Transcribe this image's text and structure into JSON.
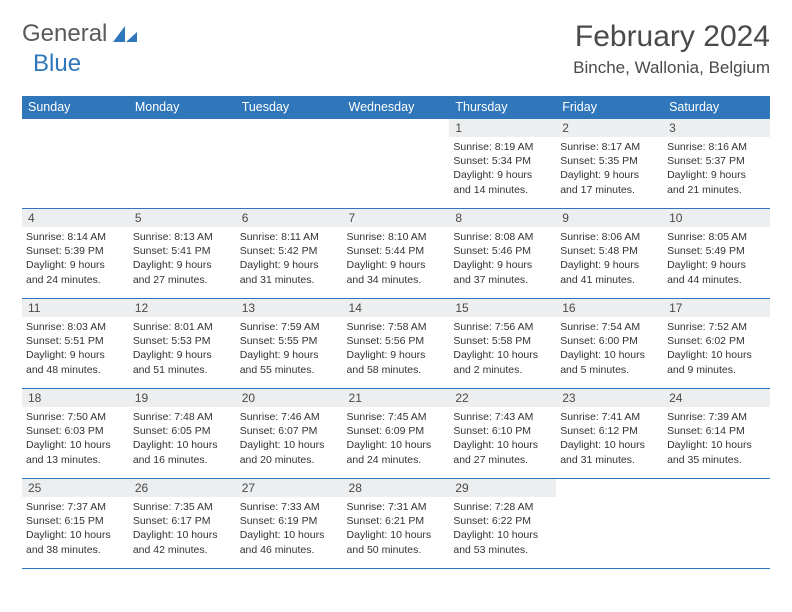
{
  "logo": {
    "word1": "General",
    "word2": "Blue"
  },
  "title": "February 2024",
  "location": "Binche, Wallonia, Belgium",
  "colors": {
    "brand_blue": "#2f76bb",
    "header_text_gray": "#5a5a5a",
    "title_gray": "#4a4a4a",
    "daynum_bg": "#eceef0",
    "body_text": "#333333"
  },
  "day_headers": [
    "Sunday",
    "Monday",
    "Tuesday",
    "Wednesday",
    "Thursday",
    "Friday",
    "Saturday"
  ],
  "weeks": [
    [
      null,
      null,
      null,
      null,
      {
        "n": "1",
        "sunrise": "Sunrise: 8:19 AM",
        "sunset": "Sunset: 5:34 PM",
        "day": "Daylight: 9 hours and 14 minutes."
      },
      {
        "n": "2",
        "sunrise": "Sunrise: 8:17 AM",
        "sunset": "Sunset: 5:35 PM",
        "day": "Daylight: 9 hours and 17 minutes."
      },
      {
        "n": "3",
        "sunrise": "Sunrise: 8:16 AM",
        "sunset": "Sunset: 5:37 PM",
        "day": "Daylight: 9 hours and 21 minutes."
      }
    ],
    [
      {
        "n": "4",
        "sunrise": "Sunrise: 8:14 AM",
        "sunset": "Sunset: 5:39 PM",
        "day": "Daylight: 9 hours and 24 minutes."
      },
      {
        "n": "5",
        "sunrise": "Sunrise: 8:13 AM",
        "sunset": "Sunset: 5:41 PM",
        "day": "Daylight: 9 hours and 27 minutes."
      },
      {
        "n": "6",
        "sunrise": "Sunrise: 8:11 AM",
        "sunset": "Sunset: 5:42 PM",
        "day": "Daylight: 9 hours and 31 minutes."
      },
      {
        "n": "7",
        "sunrise": "Sunrise: 8:10 AM",
        "sunset": "Sunset: 5:44 PM",
        "day": "Daylight: 9 hours and 34 minutes."
      },
      {
        "n": "8",
        "sunrise": "Sunrise: 8:08 AM",
        "sunset": "Sunset: 5:46 PM",
        "day": "Daylight: 9 hours and 37 minutes."
      },
      {
        "n": "9",
        "sunrise": "Sunrise: 8:06 AM",
        "sunset": "Sunset: 5:48 PM",
        "day": "Daylight: 9 hours and 41 minutes."
      },
      {
        "n": "10",
        "sunrise": "Sunrise: 8:05 AM",
        "sunset": "Sunset: 5:49 PM",
        "day": "Daylight: 9 hours and 44 minutes."
      }
    ],
    [
      {
        "n": "11",
        "sunrise": "Sunrise: 8:03 AM",
        "sunset": "Sunset: 5:51 PM",
        "day": "Daylight: 9 hours and 48 minutes."
      },
      {
        "n": "12",
        "sunrise": "Sunrise: 8:01 AM",
        "sunset": "Sunset: 5:53 PM",
        "day": "Daylight: 9 hours and 51 minutes."
      },
      {
        "n": "13",
        "sunrise": "Sunrise: 7:59 AM",
        "sunset": "Sunset: 5:55 PM",
        "day": "Daylight: 9 hours and 55 minutes."
      },
      {
        "n": "14",
        "sunrise": "Sunrise: 7:58 AM",
        "sunset": "Sunset: 5:56 PM",
        "day": "Daylight: 9 hours and 58 minutes."
      },
      {
        "n": "15",
        "sunrise": "Sunrise: 7:56 AM",
        "sunset": "Sunset: 5:58 PM",
        "day": "Daylight: 10 hours and 2 minutes."
      },
      {
        "n": "16",
        "sunrise": "Sunrise: 7:54 AM",
        "sunset": "Sunset: 6:00 PM",
        "day": "Daylight: 10 hours and 5 minutes."
      },
      {
        "n": "17",
        "sunrise": "Sunrise: 7:52 AM",
        "sunset": "Sunset: 6:02 PM",
        "day": "Daylight: 10 hours and 9 minutes."
      }
    ],
    [
      {
        "n": "18",
        "sunrise": "Sunrise: 7:50 AM",
        "sunset": "Sunset: 6:03 PM",
        "day": "Daylight: 10 hours and 13 minutes."
      },
      {
        "n": "19",
        "sunrise": "Sunrise: 7:48 AM",
        "sunset": "Sunset: 6:05 PM",
        "day": "Daylight: 10 hours and 16 minutes."
      },
      {
        "n": "20",
        "sunrise": "Sunrise: 7:46 AM",
        "sunset": "Sunset: 6:07 PM",
        "day": "Daylight: 10 hours and 20 minutes."
      },
      {
        "n": "21",
        "sunrise": "Sunrise: 7:45 AM",
        "sunset": "Sunset: 6:09 PM",
        "day": "Daylight: 10 hours and 24 minutes."
      },
      {
        "n": "22",
        "sunrise": "Sunrise: 7:43 AM",
        "sunset": "Sunset: 6:10 PM",
        "day": "Daylight: 10 hours and 27 minutes."
      },
      {
        "n": "23",
        "sunrise": "Sunrise: 7:41 AM",
        "sunset": "Sunset: 6:12 PM",
        "day": "Daylight: 10 hours and 31 minutes."
      },
      {
        "n": "24",
        "sunrise": "Sunrise: 7:39 AM",
        "sunset": "Sunset: 6:14 PM",
        "day": "Daylight: 10 hours and 35 minutes."
      }
    ],
    [
      {
        "n": "25",
        "sunrise": "Sunrise: 7:37 AM",
        "sunset": "Sunset: 6:15 PM",
        "day": "Daylight: 10 hours and 38 minutes."
      },
      {
        "n": "26",
        "sunrise": "Sunrise: 7:35 AM",
        "sunset": "Sunset: 6:17 PM",
        "day": "Daylight: 10 hours and 42 minutes."
      },
      {
        "n": "27",
        "sunrise": "Sunrise: 7:33 AM",
        "sunset": "Sunset: 6:19 PM",
        "day": "Daylight: 10 hours and 46 minutes."
      },
      {
        "n": "28",
        "sunrise": "Sunrise: 7:31 AM",
        "sunset": "Sunset: 6:21 PM",
        "day": "Daylight: 10 hours and 50 minutes."
      },
      {
        "n": "29",
        "sunrise": "Sunrise: 7:28 AM",
        "sunset": "Sunset: 6:22 PM",
        "day": "Daylight: 10 hours and 53 minutes."
      },
      null,
      null
    ]
  ]
}
